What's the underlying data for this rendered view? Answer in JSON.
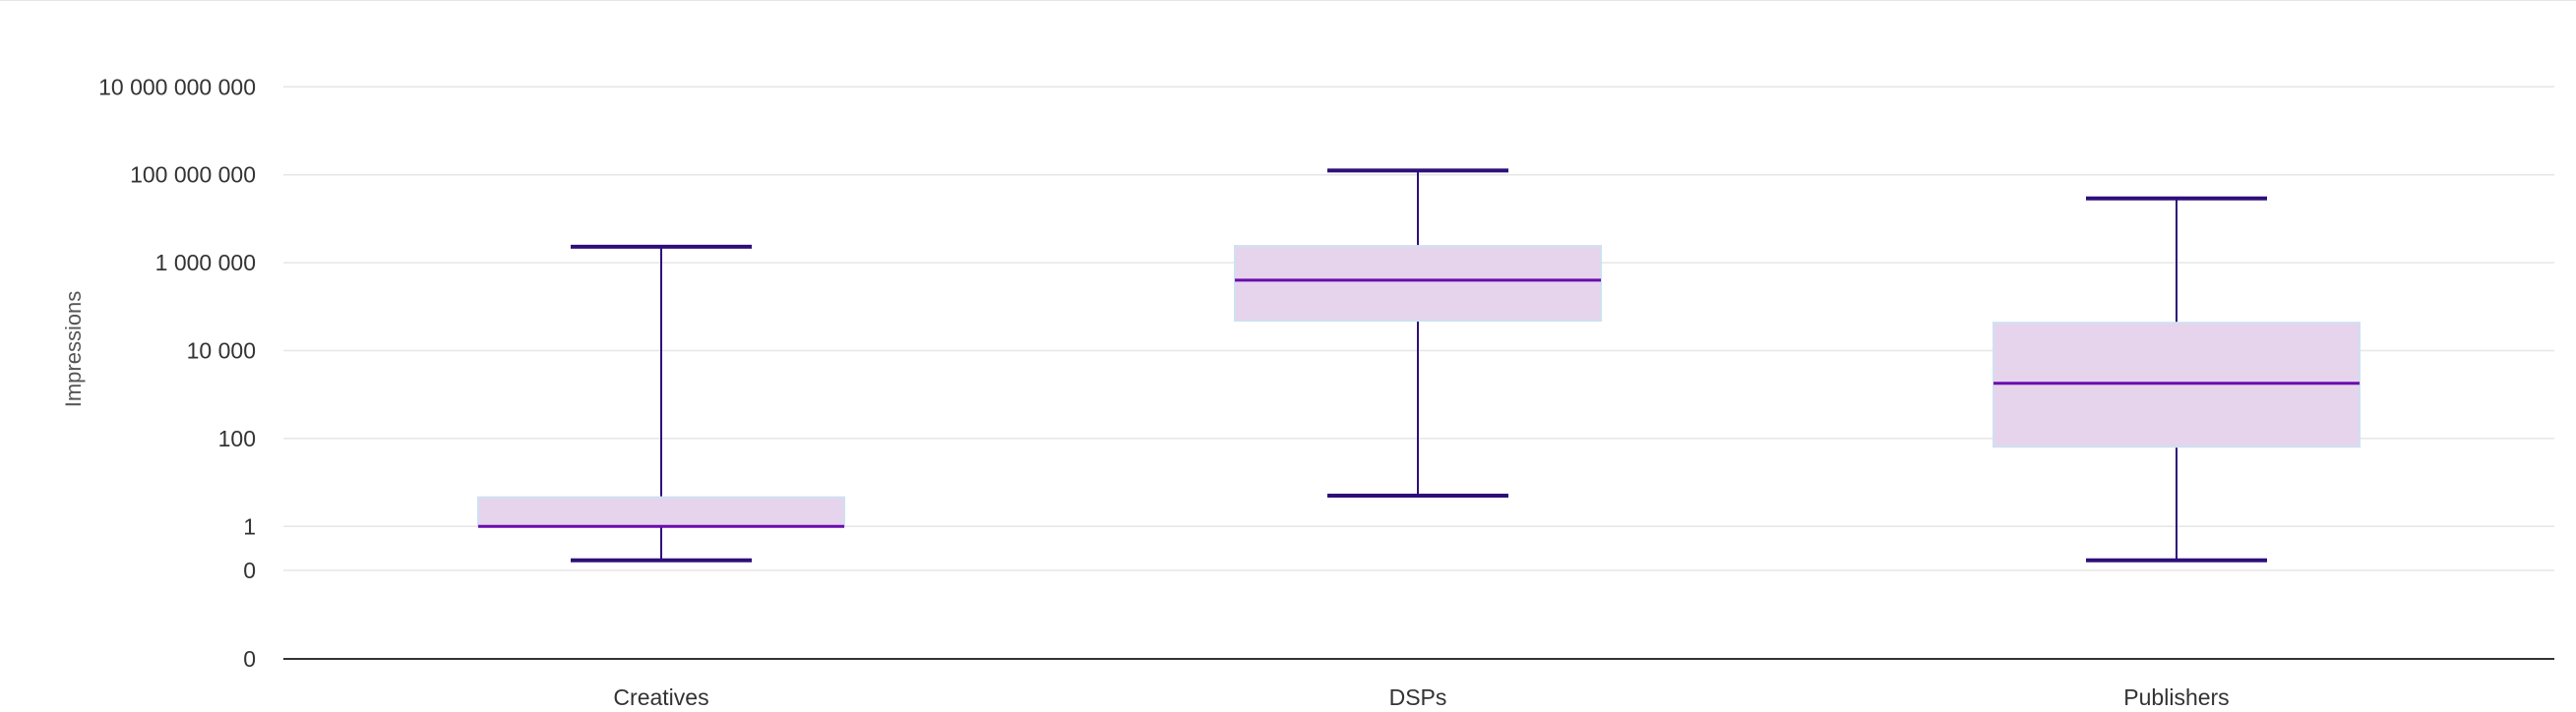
{
  "chart_data": {
    "type": "boxplot",
    "ylabel": "Impressions",
    "y_scale": "log",
    "y_ticks": [
      {
        "value": "0 (baseline)",
        "label": "0"
      },
      {
        "value": 0.1,
        "label": "0"
      },
      {
        "value": 1,
        "label": "1"
      },
      {
        "value": 100,
        "label": "100"
      },
      {
        "value": 10000,
        "label": "10 000"
      },
      {
        "value": 1000000,
        "label": "1 000 000"
      },
      {
        "value": 100000000,
        "label": "100 000 000"
      },
      {
        "value": 10000000000,
        "label": "10 000 000 000"
      }
    ],
    "categories": [
      "Creatives",
      "DSPs",
      "Publishers"
    ],
    "boxes": [
      {
        "category": "Creatives",
        "min": 0.17,
        "q1": 1,
        "median": 1,
        "q3": 4.6,
        "max": 2300000
      },
      {
        "category": "DSPs",
        "min": 5,
        "q1": 48000,
        "median": 400000,
        "q3": 2400000,
        "max": 125000000
      },
      {
        "category": "Publishers",
        "min": 0.17,
        "q1": 65,
        "median": 1800,
        "q3": 43000,
        "max": 29000000
      }
    ],
    "colors": {
      "box_fill": "#e6d4ec",
      "box_border": "#cfe0f2",
      "median": "#6a0dad",
      "whisker": "#2e0f7a",
      "grid": "#e6e6e6",
      "axis": "#333333"
    },
    "grid": true
  }
}
